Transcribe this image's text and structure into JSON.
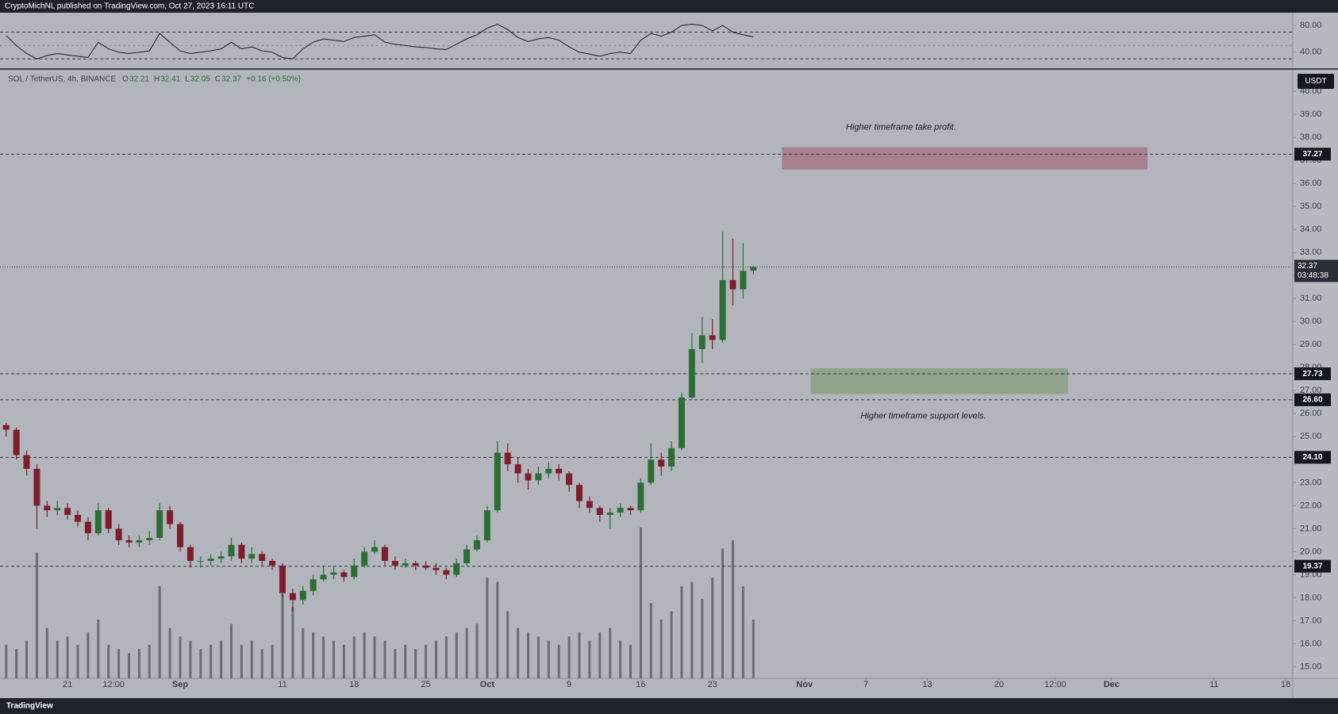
{
  "header": "CryptoMichNL published on TradingView.com, Oct 27, 2023 16:11 UTC",
  "footer": "TradingView",
  "chart_data": [
    {
      "type": "candlestick",
      "symbol": "SOL / TetherUS, 4h, BINANCE",
      "ohlc_legend": [
        {
          "label": "O",
          "value": 32.21
        },
        {
          "label": "H",
          "value": 32.41
        },
        {
          "label": "L",
          "value": 32.05
        },
        {
          "label": "C",
          "value": 32.37
        }
      ],
      "change": "+0.16 (+0.50%)",
      "currency": "USDT",
      "up_color": "#2d6e35",
      "down_color": "#7d1e2a",
      "volume_color": "#6a6d74",
      "x": [
        -6,
        -5,
        -4,
        -3,
        -2,
        -1,
        0,
        1,
        2,
        3,
        4,
        5,
        6,
        7,
        8,
        9,
        10,
        11,
        12,
        13,
        14,
        15,
        16,
        17,
        18,
        19,
        20,
        21,
        22,
        23,
        24,
        25,
        26,
        27,
        28,
        29,
        30,
        31,
        32,
        33,
        34,
        35,
        36,
        37,
        38,
        39,
        40,
        41,
        42,
        43,
        44,
        45,
        46,
        47,
        48,
        49,
        50,
        51,
        52,
        53,
        54,
        55,
        56,
        57,
        58,
        59,
        60,
        61,
        62,
        63,
        64,
        65,
        66,
        67
      ],
      "open": [
        25.5,
        25.3,
        24.2,
        23.6,
        22.0,
        21.8,
        21.9,
        21.6,
        21.3,
        20.8,
        21.8,
        21.0,
        20.5,
        20.4,
        20.5,
        20.6,
        21.8,
        21.2,
        20.2,
        19.6,
        19.6,
        19.7,
        19.8,
        20.3,
        19.7,
        19.9,
        19.6,
        19.4,
        18.2,
        17.9,
        18.3,
        18.8,
        19.0,
        19.1,
        18.9,
        19.4,
        20.0,
        20.2,
        19.6,
        19.4,
        19.5,
        19.4,
        19.3,
        19.2,
        19.0,
        19.5,
        20.1,
        20.5,
        21.8,
        24.3,
        23.8,
        23.4,
        23.1,
        23.4,
        23.6,
        23.4,
        22.9,
        22.2,
        21.9,
        21.6,
        21.7,
        21.9,
        21.8,
        23.0,
        24.0,
        23.7,
        24.5,
        26.7,
        28.8,
        29.4,
        29.2,
        31.8,
        31.4,
        32.21
      ],
      "high": [
        25.6,
        25.4,
        24.4,
        23.8,
        22.2,
        22.2,
        22.1,
        21.8,
        21.5,
        22.1,
        21.9,
        21.2,
        20.7,
        20.7,
        20.9,
        22.1,
        22.0,
        21.3,
        20.3,
        19.8,
        19.9,
        20.0,
        20.6,
        20.4,
        20.2,
        20.0,
        19.7,
        19.5,
        18.4,
        18.5,
        19.0,
        19.4,
        19.4,
        19.2,
        19.7,
        20.2,
        20.5,
        20.3,
        19.8,
        19.7,
        19.6,
        19.6,
        19.5,
        19.3,
        19.7,
        20.3,
        20.7,
        22.0,
        24.8,
        24.7,
        24.1,
        23.6,
        23.7,
        23.9,
        23.8,
        23.5,
        23.0,
        22.4,
        22.0,
        21.9,
        22.1,
        22.0,
        23.2,
        24.7,
        24.3,
        24.8,
        26.9,
        29.5,
        30.2,
        30.1,
        33.9,
        33.6,
        33.4,
        32.41
      ],
      "low": [
        25.0,
        24.0,
        23.3,
        21.0,
        21.5,
        21.6,
        21.4,
        21.1,
        20.5,
        20.7,
        20.8,
        20.3,
        20.2,
        20.2,
        20.3,
        20.5,
        21.0,
        20.0,
        19.3,
        19.3,
        19.4,
        19.5,
        19.6,
        19.5,
        19.5,
        19.4,
        19.2,
        18.0,
        17.4,
        17.7,
        18.1,
        18.7,
        18.8,
        18.7,
        18.8,
        19.3,
        19.9,
        19.4,
        19.2,
        19.3,
        19.2,
        19.2,
        19.0,
        18.8,
        18.9,
        19.4,
        20.0,
        20.4,
        21.7,
        23.5,
        23.0,
        22.7,
        22.9,
        23.2,
        23.1,
        22.6,
        21.9,
        21.7,
        21.3,
        21.0,
        21.5,
        21.6,
        21.7,
        22.9,
        23.3,
        23.5,
        24.4,
        26.6,
        28.2,
        28.8,
        29.1,
        30.7,
        31.0,
        32.05
      ],
      "close": [
        25.3,
        24.2,
        23.6,
        22.0,
        21.8,
        21.9,
        21.6,
        21.3,
        20.8,
        21.8,
        21.0,
        20.5,
        20.4,
        20.5,
        20.6,
        21.8,
        21.2,
        20.2,
        19.6,
        19.6,
        19.7,
        19.8,
        20.3,
        19.7,
        19.9,
        19.6,
        19.4,
        18.2,
        17.9,
        18.3,
        18.8,
        19.0,
        19.1,
        18.9,
        19.4,
        20.0,
        20.2,
        19.6,
        19.4,
        19.5,
        19.4,
        19.3,
        19.2,
        19.0,
        19.5,
        20.1,
        20.5,
        21.8,
        24.3,
        23.8,
        23.4,
        23.1,
        23.4,
        23.6,
        23.4,
        22.9,
        22.2,
        21.9,
        21.6,
        21.7,
        21.9,
        21.8,
        23.0,
        24.0,
        23.7,
        24.5,
        26.7,
        28.8,
        29.4,
        29.2,
        31.8,
        31.4,
        32.2,
        32.37
      ],
      "volume": [
        40,
        35,
        45,
        150,
        60,
        45,
        50,
        40,
        55,
        70,
        40,
        35,
        30,
        35,
        40,
        110,
        60,
        50,
        45,
        35,
        40,
        45,
        65,
        40,
        45,
        35,
        40,
        100,
        85,
        60,
        55,
        50,
        45,
        40,
        50,
        55,
        50,
        45,
        35,
        40,
        35,
        40,
        45,
        50,
        55,
        60,
        65,
        120,
        115,
        80,
        60,
        55,
        50,
        45,
        40,
        50,
        55,
        45,
        55,
        60,
        45,
        40,
        180,
        90,
        70,
        80,
        110,
        115,
        95,
        120,
        155,
        165,
        110,
        70
      ],
      "xlim": [
        -6.6,
        119.7
      ],
      "xticks": [
        {
          "value": 0,
          "label": "21"
        },
        {
          "value": 4.5,
          "label": "12:00"
        },
        {
          "value": 11,
          "label": "Sep"
        },
        {
          "value": 21,
          "label": "11"
        },
        {
          "value": 28,
          "label": "18"
        },
        {
          "value": 35,
          "label": "25"
        },
        {
          "value": 41,
          "label": "Oct"
        },
        {
          "value": 49,
          "label": "9"
        },
        {
          "value": 56,
          "label": "16"
        },
        {
          "value": 63,
          "label": "23"
        },
        {
          "value": 72,
          "label": "Nov"
        },
        {
          "value": 78,
          "label": "7"
        },
        {
          "value": 84,
          "label": "13"
        },
        {
          "value": 91,
          "label": "20"
        },
        {
          "value": 96.5,
          "label": "12:00"
        },
        {
          "value": 102,
          "label": "Dec"
        },
        {
          "value": 112,
          "label": "11"
        },
        {
          "value": 119,
          "label": "18"
        }
      ],
      "ylim": [
        14.5,
        40.9
      ],
      "yticks": [
        {
          "value": 15,
          "label": "15.00"
        },
        {
          "value": 16,
          "label": "16.00"
        },
        {
          "value": 17,
          "label": "17.00"
        },
        {
          "value": 18,
          "label": "18.00"
        },
        {
          "value": 19,
          "label": "19.00"
        },
        {
          "value": 20,
          "label": "20.00"
        },
        {
          "value": 21,
          "label": "21.00"
        },
        {
          "value": 22,
          "label": "22.00"
        },
        {
          "value": 23,
          "label": "23.00"
        },
        {
          "value": 24,
          "label": "24.00"
        },
        {
          "value": 25,
          "label": "25.00"
        },
        {
          "value": 26,
          "label": "26.00"
        },
        {
          "value": 27,
          "label": "27.00"
        },
        {
          "value": 28,
          "label": "28.00"
        },
        {
          "value": 29,
          "label": "29.00"
        },
        {
          "value": 30,
          "label": "30.00"
        },
        {
          "value": 31,
          "label": "31.00"
        },
        {
          "value": 32,
          "label": "32.00"
        },
        {
          "value": 33,
          "label": "33.00"
        },
        {
          "value": 34,
          "label": "34.00"
        },
        {
          "value": 35,
          "label": "35.00"
        },
        {
          "value": 36,
          "label": "36.00"
        },
        {
          "value": 37,
          "label": "37.00"
        },
        {
          "value": 38,
          "label": "38.00"
        },
        {
          "value": 39,
          "label": "39.00"
        },
        {
          "value": 40,
          "label": "40.00"
        }
      ],
      "levels": [
        {
          "value": 37.27,
          "label": "37.27"
        },
        {
          "value": 27.73,
          "label": "27.73"
        },
        {
          "value": 26.6,
          "label": "26.60"
        },
        {
          "value": 24.1,
          "label": "24.10"
        },
        {
          "value": 19.37,
          "label": "19.37"
        }
      ],
      "last_price": 32.37,
      "countdown": "03:48:38",
      "zones": [
        {
          "label": "Higher timeframe take profit.",
          "from_x": 69.8,
          "to_x": 105.5,
          "low": 36.6,
          "high": 37.57,
          "color": "#a9808d"
        },
        {
          "label": "Higher timeframe support levels.",
          "from_x": 72.6,
          "to_x": 97.75,
          "low": 26.85,
          "high": 27.97,
          "color": "#8fa48b"
        }
      ]
    },
    {
      "type": "line",
      "values": [
        65,
        50,
        38,
        30,
        35,
        38,
        36,
        34,
        32,
        55,
        45,
        40,
        38,
        40,
        42,
        68,
        55,
        42,
        38,
        40,
        42,
        45,
        55,
        45,
        48,
        42,
        40,
        32,
        30,
        45,
        55,
        60,
        58,
        56,
        62,
        64,
        66,
        55,
        52,
        50,
        48,
        47,
        45,
        44,
        52,
        60,
        66,
        76,
        82,
        74,
        62,
        56,
        60,
        62,
        58,
        48,
        40,
        37,
        34,
        38,
        40,
        38,
        58,
        68,
        64,
        70,
        80,
        82,
        80,
        72,
        80,
        70,
        66,
        63
      ],
      "color": "#1f1f1f",
      "ylim": [
        16,
        98
      ],
      "yticks": [
        {
          "value": 40,
          "label": "40.00"
        },
        {
          "value": 80,
          "label": "80.00"
        }
      ],
      "levels": [
        70,
        50,
        30
      ]
    }
  ]
}
